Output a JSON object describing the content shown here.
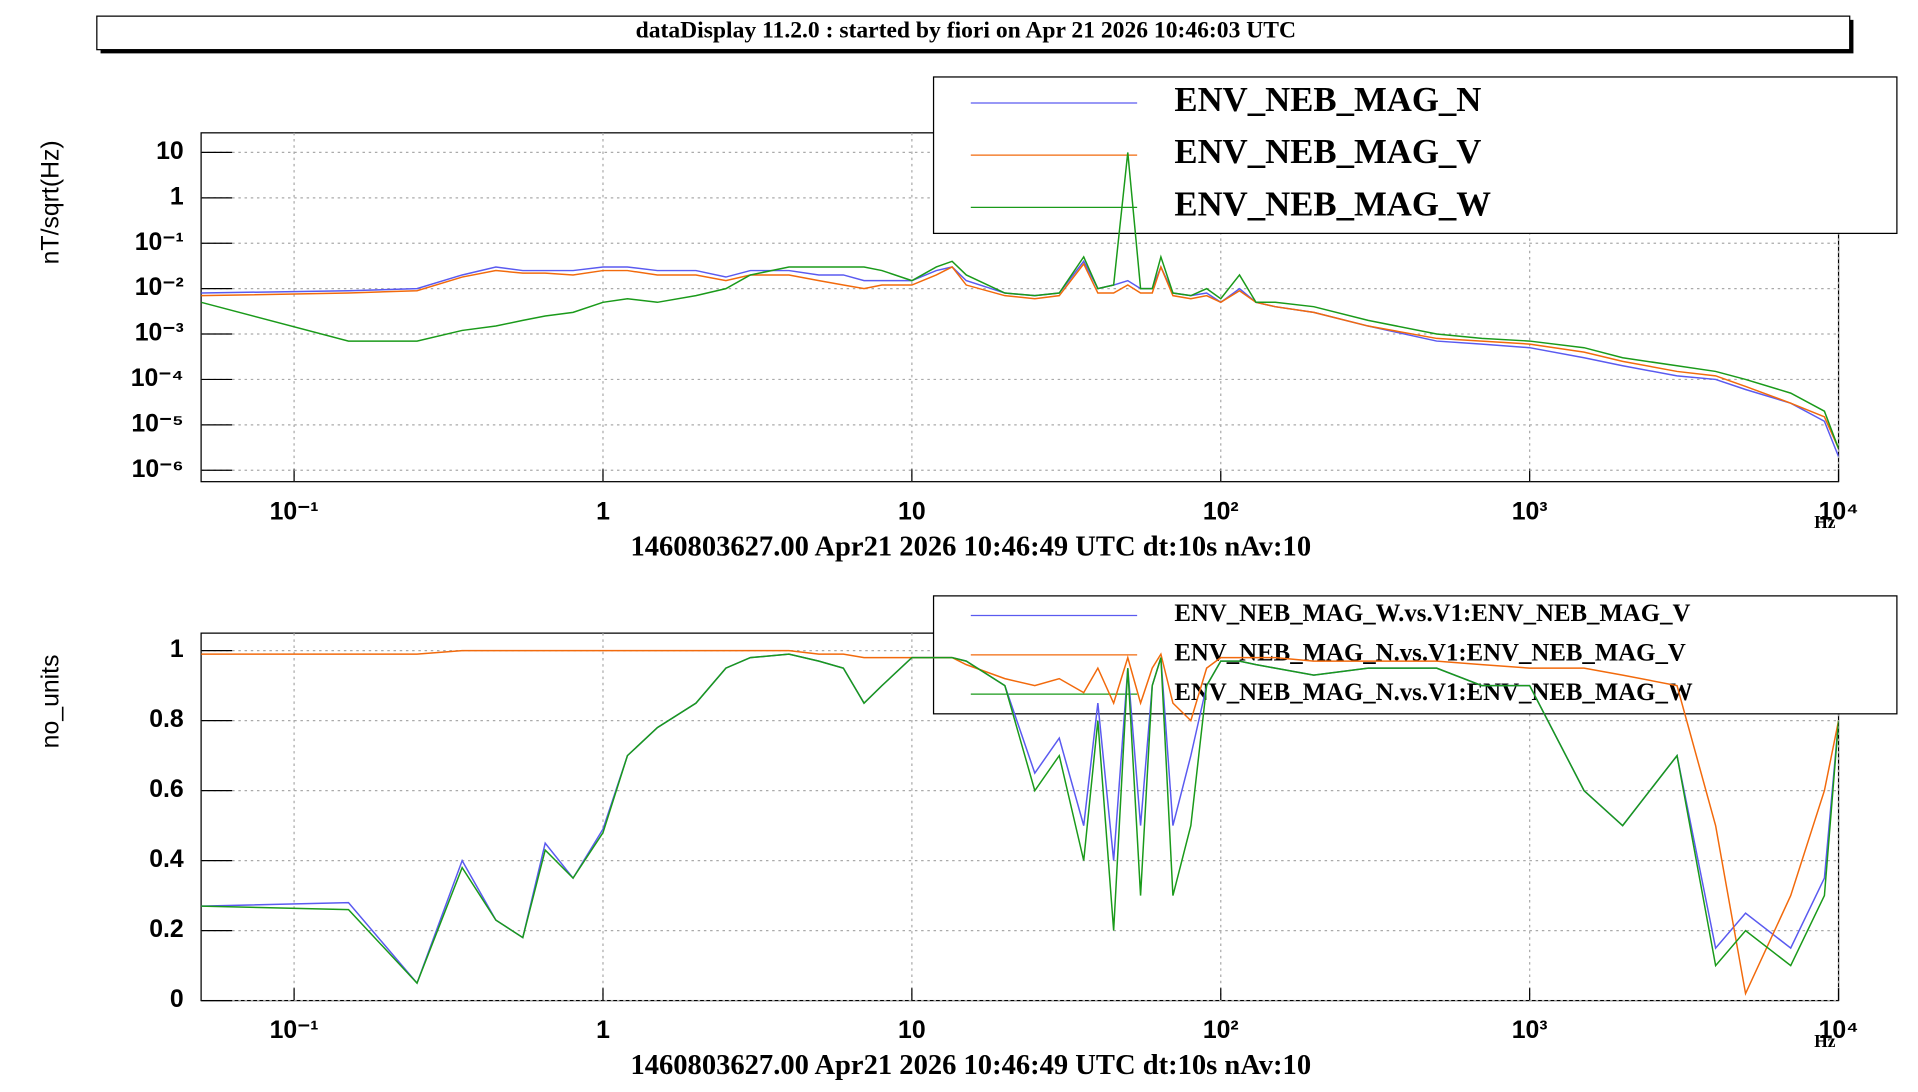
{
  "title": "dataDisplay 11.2.0 : started by fiori on Apr 21 2026 10:46:03 UTC",
  "chart_data": [
    {
      "type": "line",
      "xscale": "log",
      "yscale": "log",
      "grid": true,
      "legend": "top-right",
      "ylabel": "nT/sqrt(Hz)",
      "xlabel": "Hz",
      "caption": "1460803627.00 Apr21 2026 10:46:49 UTC dt:10s nAv:10",
      "xlim": [
        0.05,
        10000
      ],
      "ylim": [
        5.6e-07,
        27
      ],
      "xticks": [
        {
          "value": 0.1,
          "label": "10⁻¹"
        },
        1,
        10,
        {
          "value": 100,
          "label": "10²"
        },
        {
          "value": 1000,
          "label": "10³"
        },
        {
          "value": 10000,
          "label": "10⁴"
        }
      ],
      "yticks": [
        {
          "value": 1e-06,
          "label": "10⁻⁶"
        },
        {
          "value": 1e-05,
          "label": "10⁻⁵"
        },
        {
          "value": 0.0001,
          "label": "10⁻⁴"
        },
        {
          "value": 0.001,
          "label": "10⁻³"
        },
        {
          "value": 0.01,
          "label": "10⁻²"
        },
        {
          "value": 0.1,
          "label": "10⁻¹"
        },
        1,
        10
      ],
      "x": [
        0.05,
        0.15,
        0.25,
        0.35,
        0.45,
        0.55,
        0.65,
        0.8,
        1,
        1.2,
        1.5,
        2,
        2.5,
        3,
        4,
        5,
        6,
        7,
        8,
        10,
        12,
        13.5,
        15,
        20,
        25,
        30,
        36,
        40,
        45,
        50,
        55,
        60,
        64,
        70,
        80,
        90,
        100,
        115,
        130,
        150,
        200,
        300,
        500,
        700,
        1000,
        1500,
        2000,
        3000,
        4000,
        5000,
        7000,
        9000,
        10000
      ],
      "series": [
        {
          "name": "ENV_NEB_MAG_N",
          "color": "#5a5af0",
          "values": [
            0.008,
            0.009,
            0.01,
            0.02,
            0.03,
            0.025,
            0.025,
            0.025,
            0.03,
            0.03,
            0.025,
            0.025,
            0.018,
            0.025,
            0.025,
            0.02,
            0.02,
            0.015,
            0.015,
            0.015,
            0.025,
            0.03,
            0.015,
            0.008,
            0.007,
            0.008,
            0.04,
            0.01,
            0.012,
            0.015,
            0.01,
            0.01,
            0.03,
            0.008,
            0.007,
            0.008,
            0.005,
            0.01,
            0.005,
            0.004,
            0.003,
            0.0015,
            0.0007,
            0.0006,
            0.0005,
            0.0003,
            0.0002,
            0.00012,
            0.0001,
            6e-05,
            3e-05,
            1.2e-05,
            2e-06
          ]
        },
        {
          "name": "ENV_NEB_MAG_V",
          "color": "#f26a0c",
          "values": [
            0.007,
            0.008,
            0.009,
            0.018,
            0.025,
            0.022,
            0.022,
            0.02,
            0.025,
            0.025,
            0.02,
            0.02,
            0.015,
            0.02,
            0.02,
            0.015,
            0.012,
            0.01,
            0.012,
            0.012,
            0.02,
            0.03,
            0.012,
            0.007,
            0.006,
            0.007,
            0.035,
            0.008,
            0.008,
            0.012,
            0.008,
            0.008,
            0.03,
            0.007,
            0.006,
            0.007,
            0.005,
            0.009,
            0.005,
            0.004,
            0.003,
            0.0015,
            0.0008,
            0.0007,
            0.0006,
            0.0004,
            0.00025,
            0.00015,
            0.00012,
            7e-05,
            3e-05,
            1.5e-05,
            3e-06
          ]
        },
        {
          "name": "ENV_NEB_MAG_W",
          "color": "#1a9a1a",
          "values": [
            0.005,
            0.0007,
            0.0007,
            0.0012,
            0.0015,
            0.002,
            0.0025,
            0.003,
            0.005,
            0.006,
            0.005,
            0.007,
            0.01,
            0.02,
            0.03,
            0.03,
            0.03,
            0.03,
            0.025,
            0.015,
            0.03,
            0.04,
            0.02,
            0.008,
            0.007,
            0.008,
            0.05,
            0.01,
            0.012,
            10,
            0.01,
            0.01,
            0.05,
            0.008,
            0.007,
            0.01,
            0.006,
            0.02,
            0.005,
            0.005,
            0.004,
            0.002,
            0.001,
            0.0008,
            0.0007,
            0.0005,
            0.0003,
            0.0002,
            0.00015,
            0.0001,
            5e-05,
            2e-05,
            3e-06
          ]
        }
      ]
    },
    {
      "type": "line",
      "xscale": "log",
      "yscale": "linear",
      "grid": true,
      "legend": "top-right",
      "ylabel": "no_units",
      "xlabel": "Hz",
      "caption": "1460803627.00 Apr21 2026 10:46:49 UTC dt:10s nAv:10",
      "xlim": [
        0.05,
        10000
      ],
      "ylim": [
        0,
        1.05
      ],
      "xticks": [
        {
          "value": 0.1,
          "label": "10⁻¹"
        },
        1,
        10,
        {
          "value": 100,
          "label": "10²"
        },
        {
          "value": 1000,
          "label": "10³"
        },
        {
          "value": 10000,
          "label": "10⁴"
        }
      ],
      "yticks": [
        0,
        0.2,
        0.4,
        0.6,
        0.8,
        1
      ],
      "x": [
        0.05,
        0.15,
        0.25,
        0.35,
        0.45,
        0.55,
        0.65,
        0.8,
        1,
        1.2,
        1.5,
        2,
        2.5,
        3,
        4,
        5,
        6,
        7,
        8,
        10,
        12,
        13.5,
        15,
        20,
        25,
        30,
        36,
        40,
        45,
        50,
        55,
        60,
        64,
        70,
        80,
        90,
        100,
        115,
        130,
        150,
        200,
        300,
        500,
        700,
        1000,
        1500,
        2000,
        3000,
        4000,
        5000,
        7000,
        9000,
        10000
      ],
      "series": [
        {
          "name": "ENV_NEB_MAG_W.vs.V1:ENV_NEB_MAG_V",
          "color": "#5a5af0",
          "values": [
            0.27,
            0.28,
            0.05,
            0.4,
            0.23,
            0.18,
            0.45,
            0.35,
            0.49,
            0.7,
            0.78,
            0.85,
            0.95,
            0.98,
            0.99,
            0.97,
            0.95,
            0.85,
            0.9,
            0.98,
            0.98,
            0.98,
            0.97,
            0.9,
            0.65,
            0.75,
            0.5,
            0.85,
            0.4,
            0.95,
            0.5,
            0.9,
            0.98,
            0.5,
            0.7,
            0.9,
            0.97,
            0.97,
            0.96,
            0.95,
            0.93,
            0.95,
            0.95,
            0.9,
            0.9,
            0.6,
            0.5,
            0.7,
            0.15,
            0.25,
            0.15,
            0.35,
            0.8
          ]
        },
        {
          "name": "ENV_NEB_MAG_N.vs.V1:ENV_NEB_MAG_V",
          "color": "#f26a0c",
          "values": [
            0.99,
            0.99,
            0.99,
            1,
            1,
            1,
            1,
            1,
            1,
            1,
            1,
            1,
            1,
            1,
            1,
            0.99,
            0.99,
            0.98,
            0.98,
            0.98,
            0.98,
            0.98,
            0.96,
            0.92,
            0.9,
            0.92,
            0.88,
            0.95,
            0.85,
            0.98,
            0.85,
            0.95,
            0.99,
            0.85,
            0.8,
            0.95,
            0.98,
            0.98,
            0.98,
            0.98,
            0.97,
            0.97,
            0.97,
            0.96,
            0.95,
            0.95,
            0.93,
            0.9,
            0.5,
            0.02,
            0.3,
            0.6,
            0.8
          ]
        },
        {
          "name": "ENV_NEB_MAG_N.vs.V1:ENV_NEB_MAG_W",
          "color": "#1a9a1a",
          "values": [
            0.27,
            0.26,
            0.05,
            0.38,
            0.23,
            0.18,
            0.43,
            0.35,
            0.48,
            0.7,
            0.78,
            0.85,
            0.95,
            0.98,
            0.99,
            0.97,
            0.95,
            0.85,
            0.9,
            0.98,
            0.98,
            0.98,
            0.97,
            0.9,
            0.6,
            0.7,
            0.4,
            0.8,
            0.2,
            0.95,
            0.3,
            0.9,
            0.98,
            0.3,
            0.5,
            0.9,
            0.97,
            0.97,
            0.96,
            0.95,
            0.93,
            0.95,
            0.95,
            0.9,
            0.9,
            0.6,
            0.5,
            0.7,
            0.1,
            0.2,
            0.1,
            0.3,
            0.8
          ]
        }
      ]
    }
  ]
}
